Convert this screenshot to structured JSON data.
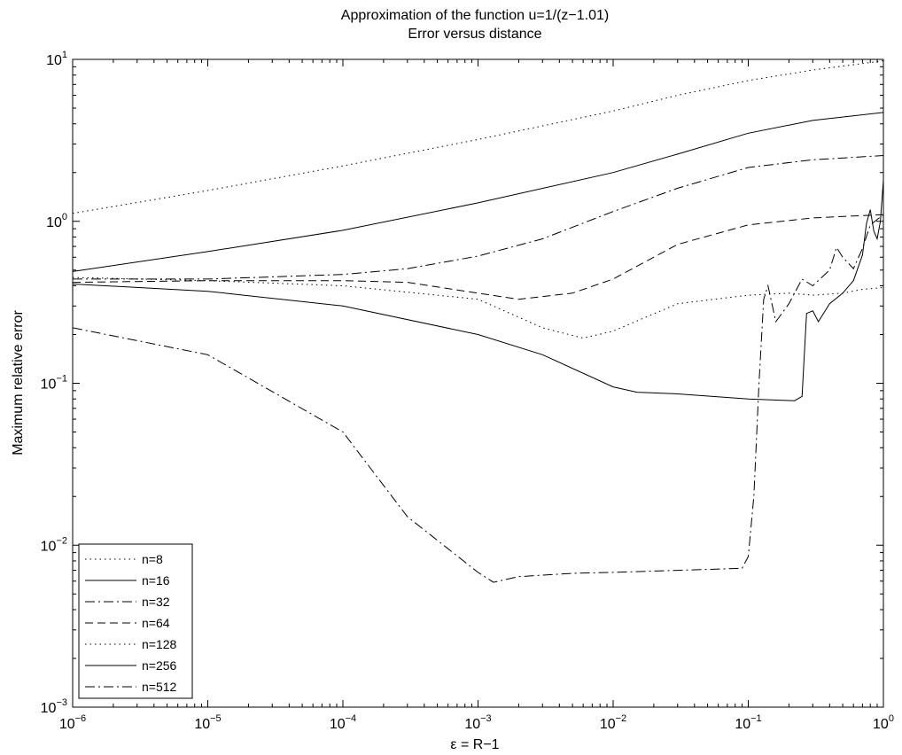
{
  "chart_data": {
    "type": "line",
    "title": "Approximation of the function u=1/(z−1.01)",
    "subtitle": "Error versus distance",
    "xlabel": "ε = R−1",
    "ylabel": "Maximum relative error",
    "xscale": "log",
    "yscale": "log",
    "xlim": [
      1e-06,
      1
    ],
    "ylim": [
      0.001,
      10
    ],
    "x_ticks": [
      {
        "base": "10",
        "exp": "−6",
        "value": 1e-06
      },
      {
        "base": "10",
        "exp": "−5",
        "value": 1e-05
      },
      {
        "base": "10",
        "exp": "−4",
        "value": 0.0001
      },
      {
        "base": "10",
        "exp": "−3",
        "value": 0.001
      },
      {
        "base": "10",
        "exp": "−2",
        "value": 0.01
      },
      {
        "base": "10",
        "exp": "−1",
        "value": 0.1
      },
      {
        "base": "10",
        "exp": "0",
        "value": 1
      }
    ],
    "y_ticks": [
      {
        "base": "10",
        "exp": "−3",
        "value": 0.001
      },
      {
        "base": "10",
        "exp": "−2",
        "value": 0.01
      },
      {
        "base": "10",
        "exp": "−1",
        "value": 0.1
      },
      {
        "base": "10",
        "exp": "0",
        "value": 1
      },
      {
        "base": "10",
        "exp": "1",
        "value": 10
      }
    ],
    "grid": false,
    "legend_position": "bottom-left",
    "series": [
      {
        "name": "n=8",
        "style": "dotted",
        "x": [
          1e-06,
          1e-05,
          0.0001,
          0.001,
          0.01,
          0.03,
          0.1,
          0.3,
          1
        ],
        "y": [
          1.12,
          1.55,
          2.2,
          3.2,
          4.8,
          6.0,
          7.4,
          8.6,
          9.8
        ]
      },
      {
        "name": "n=16",
        "style": "solid",
        "x": [
          1e-06,
          1e-05,
          0.0001,
          0.001,
          0.01,
          0.03,
          0.1,
          0.3,
          1
        ],
        "y": [
          0.49,
          0.65,
          0.88,
          1.3,
          2.0,
          2.6,
          3.5,
          4.2,
          4.7
        ]
      },
      {
        "name": "n=32",
        "style": "dashdot",
        "x": [
          1e-06,
          1e-05,
          0.0001,
          0.0003,
          0.001,
          0.003,
          0.01,
          0.03,
          0.1,
          0.3,
          1
        ],
        "y": [
          0.44,
          0.44,
          0.47,
          0.51,
          0.61,
          0.78,
          1.15,
          1.6,
          2.15,
          2.4,
          2.55
        ]
      },
      {
        "name": "n=64",
        "style": "dashed",
        "x": [
          1e-06,
          1e-05,
          0.0001,
          0.0003,
          0.001,
          0.002,
          0.005,
          0.01,
          0.03,
          0.1,
          0.3,
          1
        ],
        "y": [
          0.42,
          0.43,
          0.43,
          0.42,
          0.36,
          0.33,
          0.36,
          0.44,
          0.72,
          0.95,
          1.05,
          1.1
        ]
      },
      {
        "name": "n=128",
        "style": "dotted",
        "x": [
          1e-06,
          1e-05,
          0.0001,
          0.001,
          0.003,
          0.006,
          0.01,
          0.03,
          0.1,
          0.2,
          0.3,
          0.5,
          0.7,
          1
        ],
        "y": [
          0.45,
          0.43,
          0.4,
          0.33,
          0.22,
          0.19,
          0.21,
          0.31,
          0.35,
          0.36,
          0.35,
          0.36,
          0.38,
          0.39
        ]
      },
      {
        "name": "n=256",
        "style": "solid",
        "x": [
          1e-06,
          1e-05,
          0.0001,
          0.001,
          0.003,
          0.01,
          0.015,
          0.03,
          0.1,
          0.22,
          0.25,
          0.27,
          0.3,
          0.33,
          0.4,
          0.5,
          0.6,
          0.7,
          0.75,
          0.8,
          0.85,
          0.9,
          0.95,
          1
        ],
        "y": [
          0.41,
          0.37,
          0.3,
          0.2,
          0.15,
          0.095,
          0.088,
          0.086,
          0.08,
          0.078,
          0.083,
          0.27,
          0.28,
          0.24,
          0.31,
          0.36,
          0.43,
          0.62,
          0.97,
          1.18,
          0.87,
          0.78,
          1.0,
          1.8
        ]
      },
      {
        "name": "n=512",
        "style": "dashdot",
        "x": [
          1e-06,
          1e-05,
          0.0001,
          0.0003,
          0.001,
          0.0013,
          0.002,
          0.005,
          0.01,
          0.03,
          0.09,
          0.1,
          0.11,
          0.12,
          0.13,
          0.14,
          0.16,
          0.2,
          0.25,
          0.3,
          0.4,
          0.45,
          0.5,
          0.6,
          0.7,
          0.8,
          1
        ],
        "y": [
          0.22,
          0.15,
          0.05,
          0.015,
          0.0068,
          0.0059,
          0.0064,
          0.0067,
          0.0068,
          0.007,
          0.0072,
          0.0085,
          0.02,
          0.1,
          0.33,
          0.4,
          0.24,
          0.31,
          0.44,
          0.4,
          0.5,
          0.69,
          0.6,
          0.51,
          0.68,
          0.95,
          1.1
        ]
      }
    ]
  }
}
